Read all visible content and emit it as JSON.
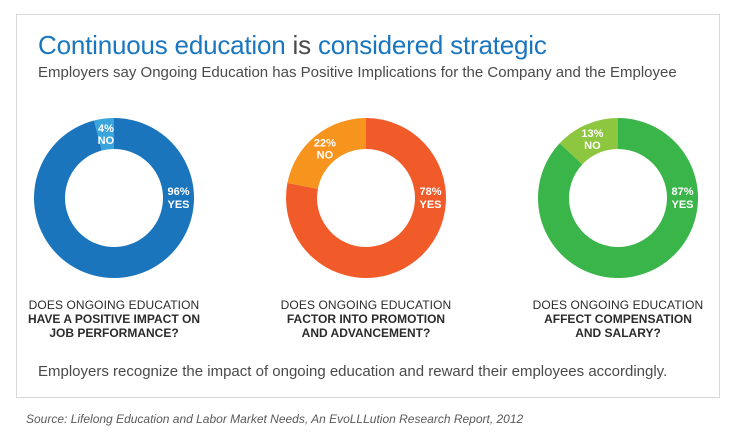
{
  "title_part1": "Continuous education",
  "title_part2": " is ",
  "title_part3": "considered strategic",
  "subtitle": "Employers say Ongoing Education has Positive Implications for the Company and the Employee",
  "footer": "Employers recognize the impact of ongoing education and reward their employees accordingly.",
  "source": "Source: Lifelong Education and Labor Market Needs, An EvoLLLution Research Report, 2012",
  "colors": {
    "blue_main": "#1b75bc",
    "blue_light": "#3aa5dd",
    "orange_main": "#f15a29",
    "orange_light": "#f7941d",
    "green_main": "#3ab54a",
    "green_light": "#8dc63f"
  },
  "chart_data": [
    {
      "type": "pie",
      "labels": [
        "YES",
        "NO"
      ],
      "values": [
        96,
        4
      ],
      "value_labels": [
        "96%",
        "4%"
      ],
      "question_line1": "DOES ONGOING EDUCATION",
      "question_line2": "HAVE A POSITIVE IMPACT ON",
      "question_line3": "JOB PERFORMANCE?"
    },
    {
      "type": "pie",
      "labels": [
        "YES",
        "NO"
      ],
      "values": [
        78,
        22
      ],
      "value_labels": [
        "78%",
        "22%"
      ],
      "question_line1": "DOES ONGOING EDUCATION",
      "question_line2": "FACTOR INTO PROMOTION",
      "question_line3": "AND ADVANCEMENT?"
    },
    {
      "type": "pie",
      "labels": [
        "YES",
        "NO"
      ],
      "values": [
        87,
        13
      ],
      "value_labels": [
        "87%",
        "13%"
      ],
      "question_line1": "DOES ONGOING EDUCATION",
      "question_line2": "AFFECT COMPENSATION",
      "question_line3": "AND SALARY?"
    }
  ]
}
